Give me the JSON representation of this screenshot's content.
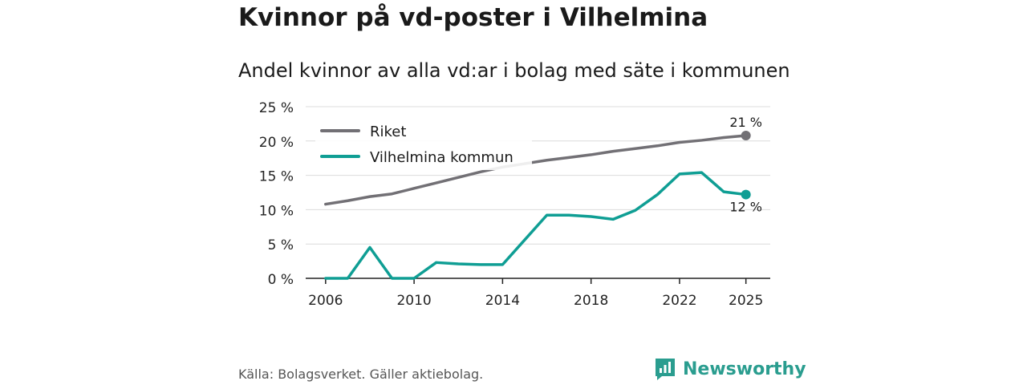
{
  "header": {
    "title": "Kvinnor på vd-poster i Vilhelmina",
    "subtitle": "Andel kvinnor av alla vd:ar i bolag med säte i kommunen"
  },
  "footer": {
    "source": "Källa: Bolagsverket. Gäller aktiebolag.",
    "brand": "Newsworthy"
  },
  "colors": {
    "riket": "#727075",
    "kommun": "#0f9e94",
    "grid": "#dcdcdc",
    "brand": "#2a9d8f"
  },
  "chart_data": {
    "type": "line",
    "title": "Kvinnor på vd-poster i Vilhelmina",
    "subtitle": "Andel kvinnor av alla vd:ar i bolag med säte i kommunen",
    "xlabel": "",
    "ylabel": "",
    "x": [
      2006,
      2007,
      2008,
      2009,
      2010,
      2011,
      2012,
      2013,
      2014,
      2015,
      2016,
      2017,
      2018,
      2019,
      2020,
      2021,
      2022,
      2023,
      2024,
      2025
    ],
    "xlim": [
      2005.1,
      2026.1
    ],
    "ylim": [
      0,
      25
    ],
    "xticks": [
      2006,
      2010,
      2014,
      2018,
      2022,
      2025
    ],
    "yticks": [
      0,
      5,
      10,
      15,
      20,
      25
    ],
    "ytick_labels": [
      "0 %",
      "5 %",
      "10 %",
      "15 %",
      "20 %",
      "25 %"
    ],
    "grid": true,
    "legend_position": "top-left",
    "series": [
      {
        "name": "Riket",
        "color": "#727075",
        "values": [
          10.8,
          11.3,
          11.9,
          12.3,
          13.1,
          13.9,
          14.7,
          15.5,
          16.2,
          16.7,
          17.2,
          17.6,
          18.0,
          18.5,
          18.9,
          19.3,
          19.8,
          20.1,
          20.5,
          20.8
        ],
        "end_label": "21 %",
        "end_label_position": "above"
      },
      {
        "name": "Vilhelmina kommun",
        "color": "#0f9e94",
        "values": [
          0.0,
          0.0,
          4.5,
          0.0,
          0.0,
          2.3,
          2.1,
          2.0,
          2.0,
          5.6,
          9.2,
          9.2,
          9.0,
          8.6,
          9.9,
          12.2,
          15.2,
          15.4,
          12.6,
          12.2
        ],
        "end_label": "12 %",
        "end_label_position": "below"
      }
    ]
  }
}
